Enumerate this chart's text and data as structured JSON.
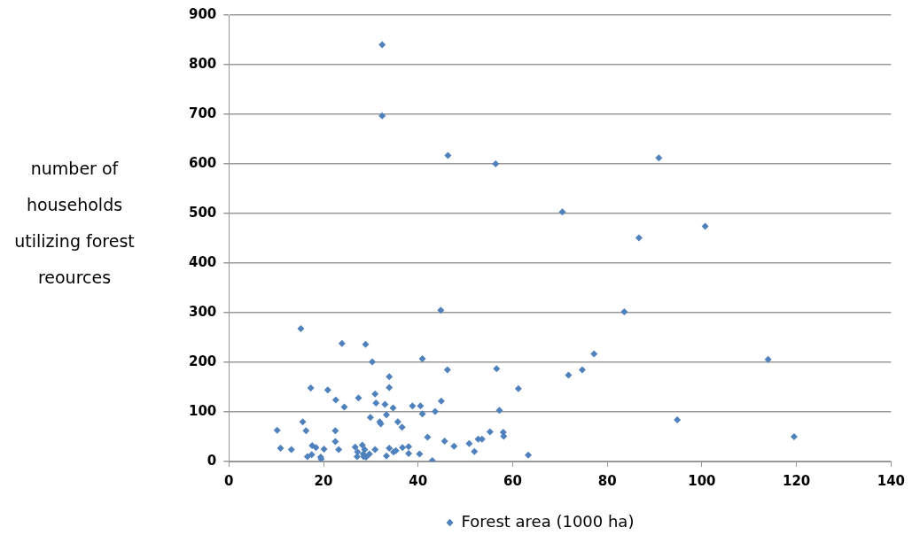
{
  "chart_data": {
    "type": "scatter",
    "ylabel": "number of households utilizing forest reources",
    "legend": "bottom",
    "grid": "y",
    "marker": "diamond",
    "xlim": [
      0,
      140
    ],
    "xticks": [
      0,
      20,
      40,
      60,
      80,
      100,
      120,
      140
    ],
    "ylim": [
      0,
      900
    ],
    "yticks": [
      0,
      100,
      200,
      300,
      400,
      500,
      600,
      700,
      800,
      900
    ],
    "series": [
      {
        "name": "Forest area (1000 ha)",
        "color": "#4f81bd",
        "x": [
          32.4,
          32.4,
          46.3,
          56.4,
          90.9,
          70.5,
          86.7,
          100.7,
          83.6,
          77.2,
          71.8,
          74.7,
          114.0,
          94.8,
          119.5,
          15.2,
          44.8,
          23.9,
          28.9,
          30.3,
          33.9,
          33.9,
          17.3,
          20.9,
          22.6,
          27.4,
          24.4,
          30.9,
          31.1,
          33.0,
          34.7,
          33.3,
          29.9,
          31.9,
          32.1,
          35.7,
          15.6,
          10.2,
          16.3,
          22.5,
          22.5,
          10.9,
          13.2,
          17.6,
          18.4,
          20.1,
          23.2,
          16.6,
          17.5,
          19.4,
          19.5,
          26.7,
          28.2,
          28.7,
          27.2,
          27.1,
          28.4,
          28.5,
          29.0,
          29.7,
          30.9,
          33.3,
          33.9,
          34.8,
          35.3,
          40.9,
          46.2,
          56.6,
          61.2,
          38.8,
          40.5,
          40.9,
          43.6,
          44.9,
          57.2,
          36.6,
          42.0,
          45.6,
          47.6,
          50.8,
          51.9,
          52.7,
          53.5,
          55.2,
          58.0,
          58.1,
          63.3,
          43.0,
          40.3,
          38.0,
          38.0,
          36.7
        ],
        "values": [
          840,
          697,
          617,
          600,
          612,
          503,
          451,
          474,
          302,
          217,
          174,
          185,
          206,
          84,
          50,
          268,
          305,
          238,
          236,
          201,
          171,
          149,
          148,
          144,
          124,
          128,
          110,
          136,
          118,
          115,
          108,
          94,
          89,
          80,
          76,
          80,
          80,
          63,
          62,
          62,
          40,
          27,
          24,
          32,
          28,
          25,
          24,
          10,
          14,
          9,
          5,
          29,
          33,
          24,
          19,
          10,
          15,
          10,
          9,
          15,
          24,
          11,
          27,
          19,
          22,
          207,
          185,
          187,
          147,
          112,
          112,
          96,
          101,
          122,
          103,
          69,
          49,
          41,
          31,
          36,
          20,
          45,
          45,
          60,
          59,
          51,
          13,
          2,
          15,
          30,
          16,
          28
        ]
      }
    ]
  }
}
